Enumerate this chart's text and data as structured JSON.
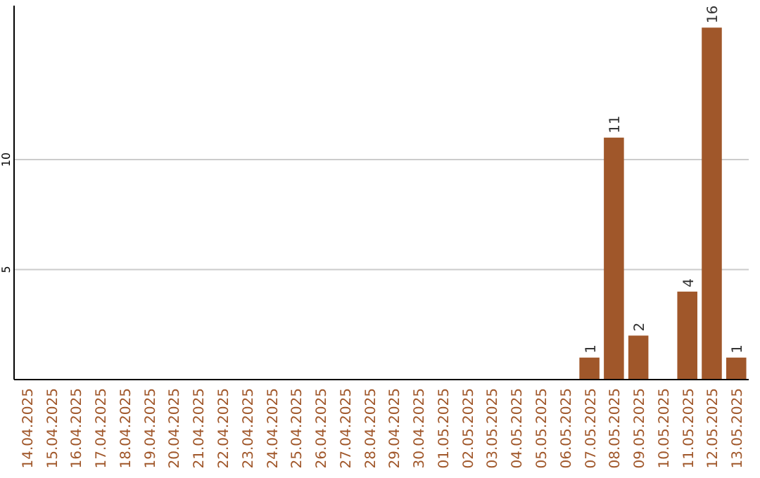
{
  "chart_data": {
    "type": "bar",
    "categories": [
      "14.04.2025",
      "15.04.2025",
      "16.04.2025",
      "17.04.2025",
      "18.04.2025",
      "19.04.2025",
      "20.04.2025",
      "21.04.2025",
      "22.04.2025",
      "23.04.2025",
      "24.04.2025",
      "25.04.2025",
      "26.04.2025",
      "27.04.2025",
      "28.04.2025",
      "29.04.2025",
      "30.04.2025",
      "01.05.2025",
      "02.05.2025",
      "03.05.2025",
      "04.05.2025",
      "05.05.2025",
      "06.05.2025",
      "07.05.2025",
      "08.05.2025",
      "09.05.2025",
      "10.05.2025",
      "11.05.2025",
      "12.05.2025",
      "13.05.2025"
    ],
    "values": [
      0,
      0,
      0,
      0,
      0,
      0,
      0,
      0,
      0,
      0,
      0,
      0,
      0,
      0,
      0,
      0,
      0,
      0,
      0,
      0,
      0,
      0,
      0,
      1,
      11,
      2,
      0,
      4,
      16,
      1
    ],
    "value_labels": [
      null,
      null,
      null,
      null,
      null,
      null,
      null,
      null,
      null,
      null,
      null,
      null,
      null,
      null,
      null,
      null,
      null,
      null,
      null,
      null,
      null,
      null,
      null,
      "1",
      "11",
      "2",
      null,
      "4",
      "16",
      "1"
    ],
    "color": "#a0572a",
    "ylim": [
      0,
      17
    ],
    "yticks": [
      5,
      10
    ],
    "grid": "y"
  }
}
